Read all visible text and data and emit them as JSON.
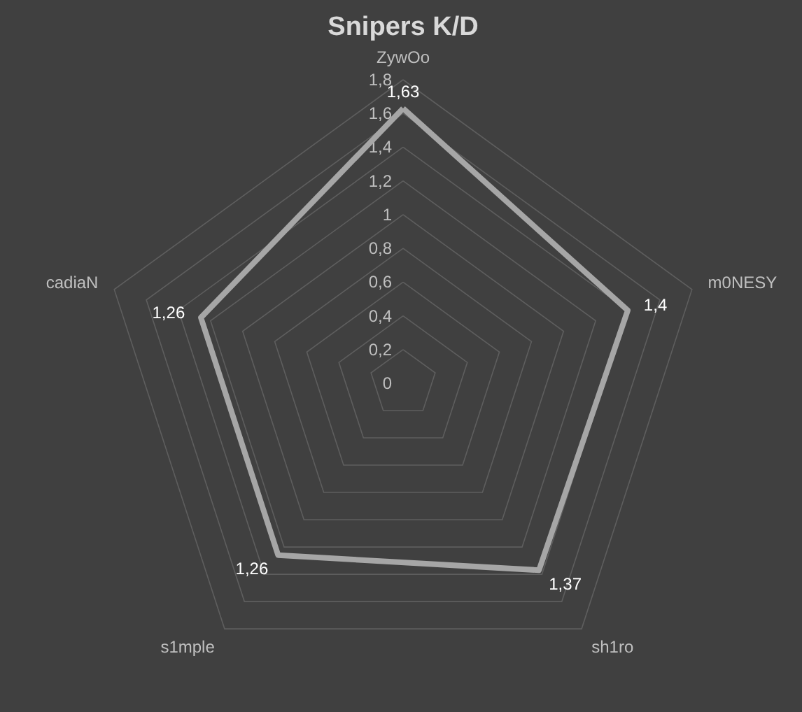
{
  "chart_data": {
    "type": "radar",
    "title": "Snipers K/D",
    "categories": [
      "ZywOo",
      "m0NESY",
      "sh1ro",
      "s1mple",
      "cadiaN"
    ],
    "series": [
      {
        "color": "#a6a6a6",
        "values": [
          1.63,
          1.4,
          1.37,
          1.26,
          1.26
        ],
        "value_labels": [
          "1,63",
          "1,4",
          "1,37",
          "1,26",
          "1,26"
        ]
      }
    ],
    "ylim": [
      0,
      1.8
    ],
    "yticks": [
      0,
      {
        "value": 0.2,
        "label": "0,2"
      },
      {
        "value": 0.4,
        "label": "0,4"
      },
      {
        "value": 0.6,
        "label": "0,6"
      },
      {
        "value": 0.8,
        "label": "0,8"
      },
      1,
      {
        "value": 1.2,
        "label": "1,2"
      },
      {
        "value": 1.4,
        "label": "1,4"
      },
      {
        "value": 1.6,
        "label": "1,6"
      },
      {
        "value": 1.8,
        "label": "1,8"
      }
    ],
    "grid": true
  }
}
